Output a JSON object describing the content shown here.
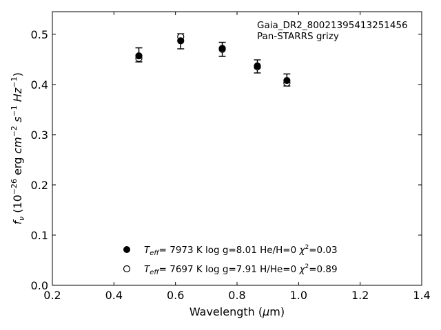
{
  "chart_data": {
    "type": "scatter",
    "title": "",
    "annotation": [
      "Gaia_DR2_800213954132514​56",
      "Pan-STARRS grizy"
    ],
    "xlabel": "Wavelength (μm)",
    "ylabel": "f_ν (10^-26 erg cm^-2 s^-1 Hz^-1)",
    "xlim": [
      0.2,
      1.4
    ],
    "ylim": [
      0.0,
      0.545
    ],
    "xticks": [
      0.2,
      0.4,
      0.6,
      0.8,
      1.0,
      1.2,
      1.4
    ],
    "xtick_labels": [
      "0.2",
      "0.4",
      "0.6",
      "0.8",
      "1.0",
      "1.2",
      "1.4"
    ],
    "yticks": [
      0.0,
      0.1,
      0.2,
      0.3,
      0.4,
      0.5
    ],
    "ytick_labels": [
      "0.0",
      "0.1",
      "0.2",
      "0.3",
      "0.4",
      "0.5"
    ],
    "grid": false,
    "legend_position": "bottom-center",
    "observed": {
      "x": [
        0.481,
        0.617,
        0.752,
        0.866,
        0.962
      ],
      "y": [
        0.459,
        0.486,
        0.47,
        0.436,
        0.409
      ],
      "yerr": [
        0.014,
        0.015,
        0.014,
        0.013,
        0.012
      ]
    },
    "series": [
      {
        "marker": "filled-circle",
        "label": "T_eff=  7973 K  log g=8.01  He/H=0  χ²=0.03",
        "x": [
          0.481,
          0.617,
          0.752,
          0.866,
          0.962
        ],
        "y": [
          0.457,
          0.487,
          0.472,
          0.437,
          0.408
        ]
      },
      {
        "marker": "open-circle",
        "label": "T_eff=  7697 K  log g=7.91  H/He=0  χ²=0.89",
        "x": [
          0.481,
          0.617,
          0.752,
          0.866,
          0.962
        ],
        "y": [
          0.452,
          0.495,
          0.47,
          0.435,
          0.403
        ]
      }
    ],
    "colors": {
      "marker": "#000000",
      "axes": "#000000"
    }
  }
}
